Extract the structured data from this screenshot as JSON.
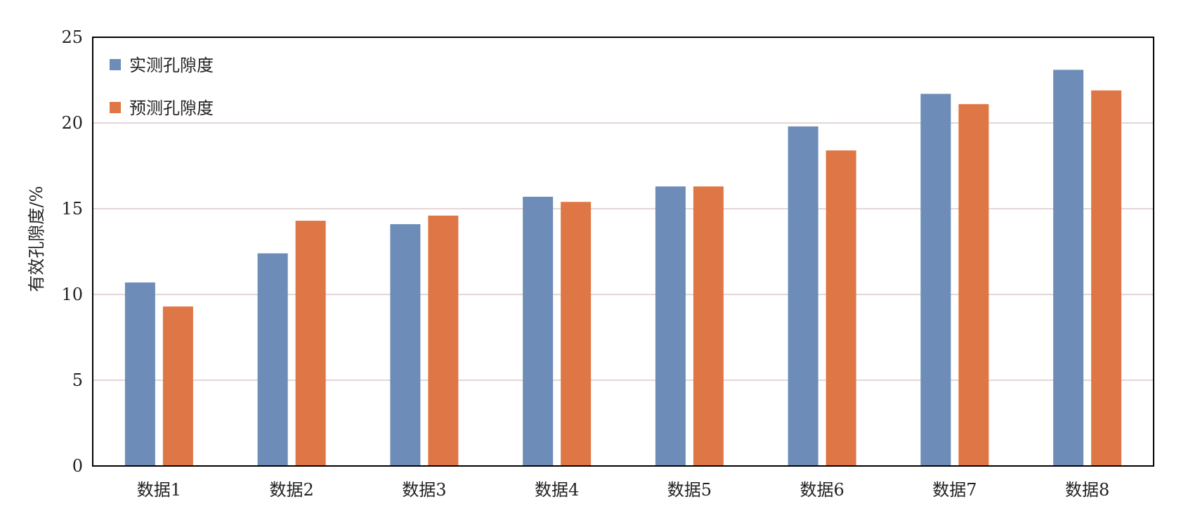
{
  "chart_data": {
    "type": "bar",
    "categories": [
      "数据1",
      "数据2",
      "数据3",
      "数据4",
      "数据5",
      "数据6",
      "数据7",
      "数据8"
    ],
    "series": [
      {
        "name": "实测孔隙度",
        "color": "#6d8cb8",
        "values": [
          10.7,
          12.4,
          14.1,
          15.7,
          16.3,
          19.8,
          21.7,
          23.1
        ]
      },
      {
        "name": "预测孔隙度",
        "color": "#df7645",
        "values": [
          9.3,
          14.3,
          14.6,
          15.4,
          16.3,
          18.4,
          21.1,
          21.9
        ]
      }
    ],
    "ylabel": "有效孔隙度/%",
    "ylim": [
      0,
      25
    ],
    "yticks": [
      0,
      5,
      10,
      15,
      20,
      25
    ],
    "grid": true,
    "grid_color": "#dcc8c8",
    "legend_position": "top-left"
  }
}
